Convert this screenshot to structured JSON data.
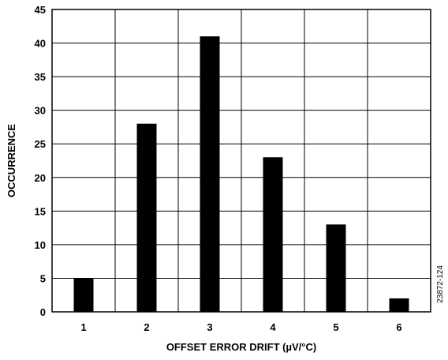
{
  "chart_data": {
    "type": "bar",
    "categories": [
      "1",
      "2",
      "3",
      "4",
      "5",
      "6"
    ],
    "values": [
      5,
      28,
      41,
      23,
      13,
      2
    ],
    "title": "",
    "xlabel": "OFFSET ERROR DRIFT (µV/°C)",
    "ylabel": "OCCURRENCE",
    "ylim": [
      0,
      45
    ],
    "yticks": [
      0,
      5,
      10,
      15,
      20,
      25,
      30,
      35,
      40,
      45
    ],
    "grid": true,
    "legend": "none",
    "bar_color": "#000000",
    "figure_id": "23872-124"
  }
}
